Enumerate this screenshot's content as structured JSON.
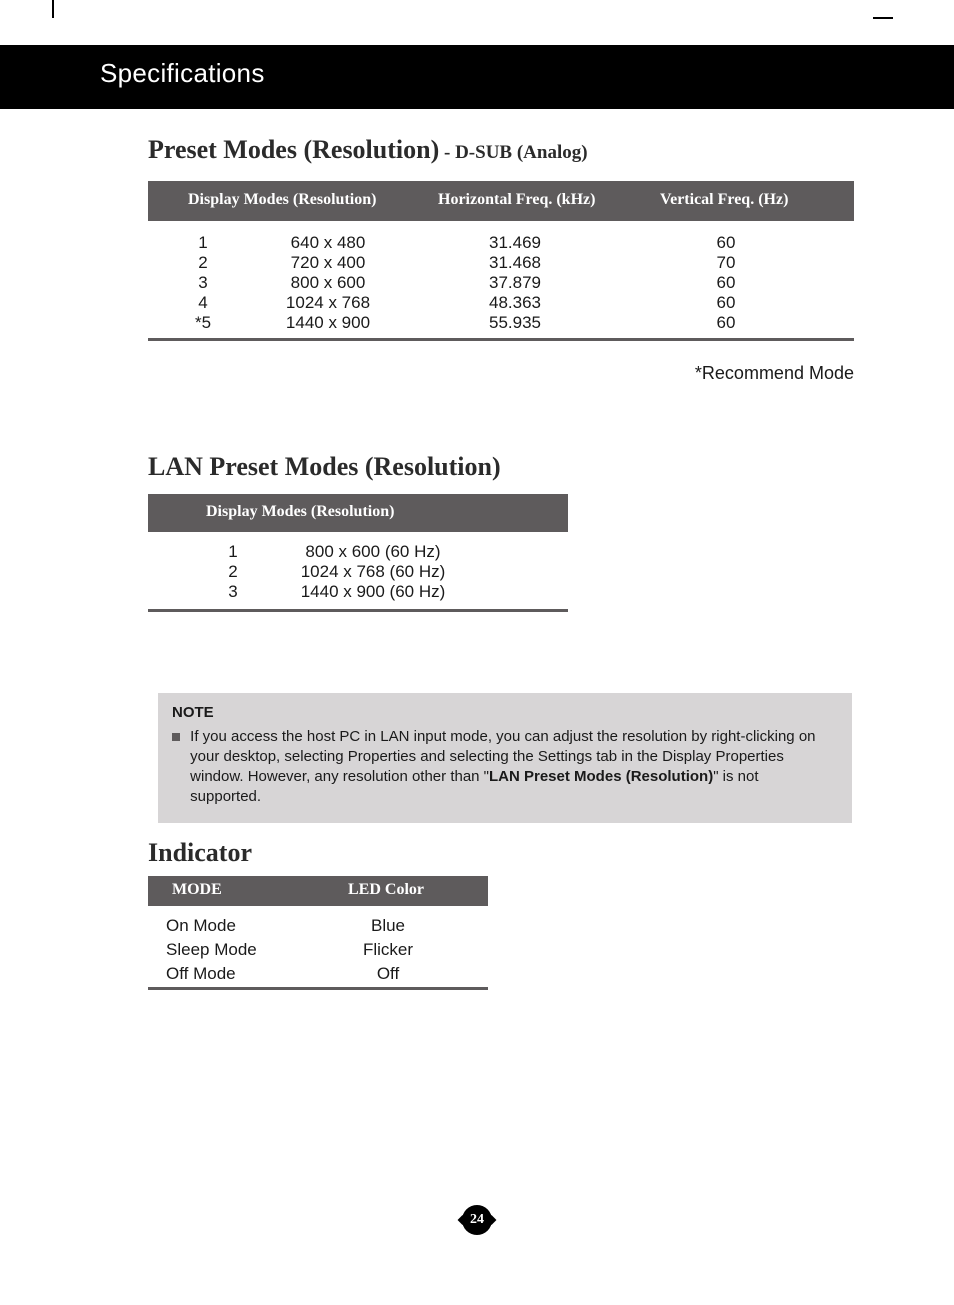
{
  "page": {
    "section_title": "Specifications",
    "page_number": "24"
  },
  "preset": {
    "heading_main": "Preset Modes (Resolution)",
    "heading_sub": " - D-SUB (Analog)",
    "header_col1": "Display Modes (Resolution)",
    "header_col2": "Horizontal Freq. (kHz)",
    "header_col3": "Vertical Freq. (Hz)",
    "idx": "1\n2\n3\n4\n*5",
    "res": "640 x 480\n720 x 400\n800 x 600\n1024 x 768\n1440 x 900",
    "hfreq": "31.469\n31.468\n37.879\n48.363\n55.935",
    "vfreq": "60\n70\n60\n60\n60",
    "recommend": "*Recommend Mode"
  },
  "lan": {
    "heading": "LAN  Preset Modes (Resolution)",
    "header_col1": "Display Modes (Resolution)",
    "idx": "1\n2\n3",
    "res": "800 x 600 (60 Hz)\n1024 x 768 (60 Hz)\n1440 x 900 (60 Hz)"
  },
  "note": {
    "label": "NOTE",
    "text_pre": "If you access the host PC in LAN input mode, you can adjust the resolution by right-clicking on your desktop, selecting Properties and selecting the Settings tab in the Display Properties window. However, any resolution other than \"",
    "text_bold": "LAN Preset Modes (Resolution)",
    "text_post": "\" is not supported."
  },
  "indicator": {
    "heading": "Indicator",
    "header_col1": "MODE",
    "header_col2": "LED Color",
    "mode": "On Mode\nSleep Mode\nOff Mode",
    "led": "Blue\nFlicker\nOff"
  },
  "colors": {
    "header_bg": "#5e5b5c",
    "note_bg": "#d7d5d6",
    "text": "#1a1a1a"
  }
}
